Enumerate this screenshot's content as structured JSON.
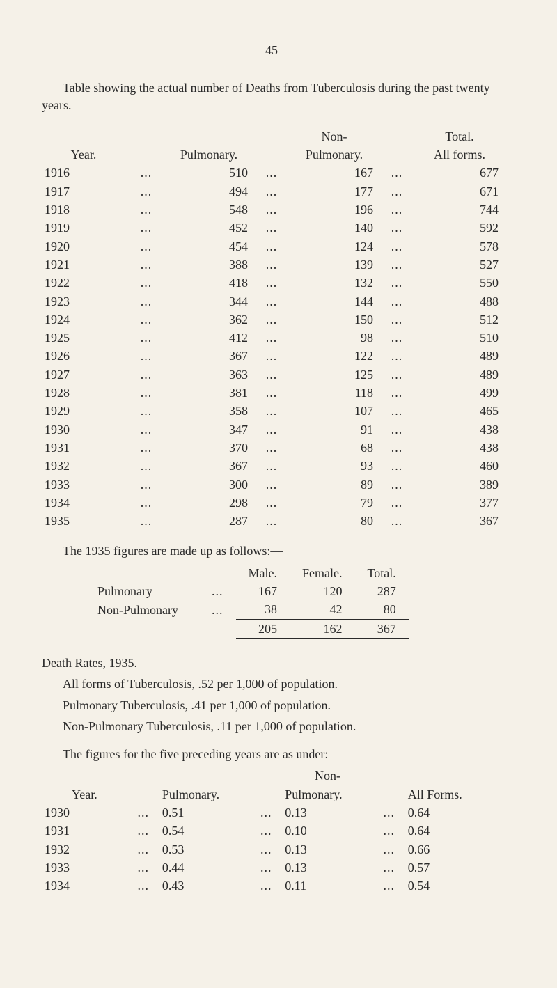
{
  "page_number": "45",
  "intro": "Table showing the actual number of Deaths from Tuberculosis during the past twenty years.",
  "deaths_table": {
    "headers": {
      "year": "Year.",
      "pulmonary": "Pulmonary.",
      "non": "Non-",
      "non2": "Pulmonary.",
      "total1": "Total.",
      "total2": "All forms."
    },
    "rows": [
      {
        "year": "1916",
        "p": "510",
        "n": "167",
        "t": "677"
      },
      {
        "year": "1917",
        "p": "494",
        "n": "177",
        "t": "671"
      },
      {
        "year": "1918",
        "p": "548",
        "n": "196",
        "t": "744"
      },
      {
        "year": "1919",
        "p": "452",
        "n": "140",
        "t": "592"
      },
      {
        "year": "1920",
        "p": "454",
        "n": "124",
        "t": "578"
      },
      {
        "year": "1921",
        "p": "388",
        "n": "139",
        "t": "527"
      },
      {
        "year": "1922",
        "p": "418",
        "n": "132",
        "t": "550"
      },
      {
        "year": "1923",
        "p": "344",
        "n": "144",
        "t": "488"
      },
      {
        "year": "1924",
        "p": "362",
        "n": "150",
        "t": "512"
      },
      {
        "year": "1925",
        "p": "412",
        "n": "98",
        "t": "510"
      },
      {
        "year": "1926",
        "p": "367",
        "n": "122",
        "t": "489"
      },
      {
        "year": "1927",
        "p": "363",
        "n": "125",
        "t": "489"
      },
      {
        "year": "1928",
        "p": "381",
        "n": "118",
        "t": "499"
      },
      {
        "year": "1929",
        "p": "358",
        "n": "107",
        "t": "465"
      },
      {
        "year": "1930",
        "p": "347",
        "n": "91",
        "t": "438"
      },
      {
        "year": "1931",
        "p": "370",
        "n": "68",
        "t": "438"
      },
      {
        "year": "1932",
        "p": "367",
        "n": "93",
        "t": "460"
      },
      {
        "year": "1933",
        "p": "300",
        "n": "89",
        "t": "389"
      },
      {
        "year": "1934",
        "p": "298",
        "n": "79",
        "t": "377"
      },
      {
        "year": "1935",
        "p": "287",
        "n": "80",
        "t": "367"
      }
    ]
  },
  "followup_line": "The 1935 figures are made up as follows:—",
  "mf_table": {
    "headers": {
      "male": "Male.",
      "female": "Female.",
      "total": "Total."
    },
    "rows": [
      {
        "lbl": "Pulmonary",
        "m": "167",
        "f": "120",
        "t": "287"
      },
      {
        "lbl": "Non-Pulmonary",
        "m": "38",
        "f": "42",
        "t": "80"
      }
    ],
    "totals": {
      "m": "205",
      "f": "162",
      "t": "367"
    }
  },
  "death_rates_heading": "Death Rates, 1935.",
  "dr_lines": [
    "All forms of Tuberculosis, .52 per 1,000 of population.",
    "Pulmonary Tuberculosis, .41 per 1,000 of population.",
    "Non-Pulmonary Tuberculosis, .11 per 1,000 of population."
  ],
  "preceding_intro": "The figures for the five preceding years are as under:—",
  "rates_table": {
    "headers": {
      "year": "Year.",
      "pulm": "Pulmonary.",
      "non1": "Non-",
      "non2": "Pulmonary.",
      "all": "All Forms."
    },
    "rows": [
      {
        "year": "1930",
        "p": "0.51",
        "n": "0.13",
        "a": "0.64"
      },
      {
        "year": "1931",
        "p": "0.54",
        "n": "0.10",
        "a": "0.64"
      },
      {
        "year": "1932",
        "p": "0.53",
        "n": "0.13",
        "a": "0.66"
      },
      {
        "year": "1933",
        "p": "0.44",
        "n": "0.13",
        "a": "0.57"
      },
      {
        "year": "1934",
        "p": "0.43",
        "n": "0.11",
        "a": "0.54"
      }
    ]
  },
  "dots": "..."
}
